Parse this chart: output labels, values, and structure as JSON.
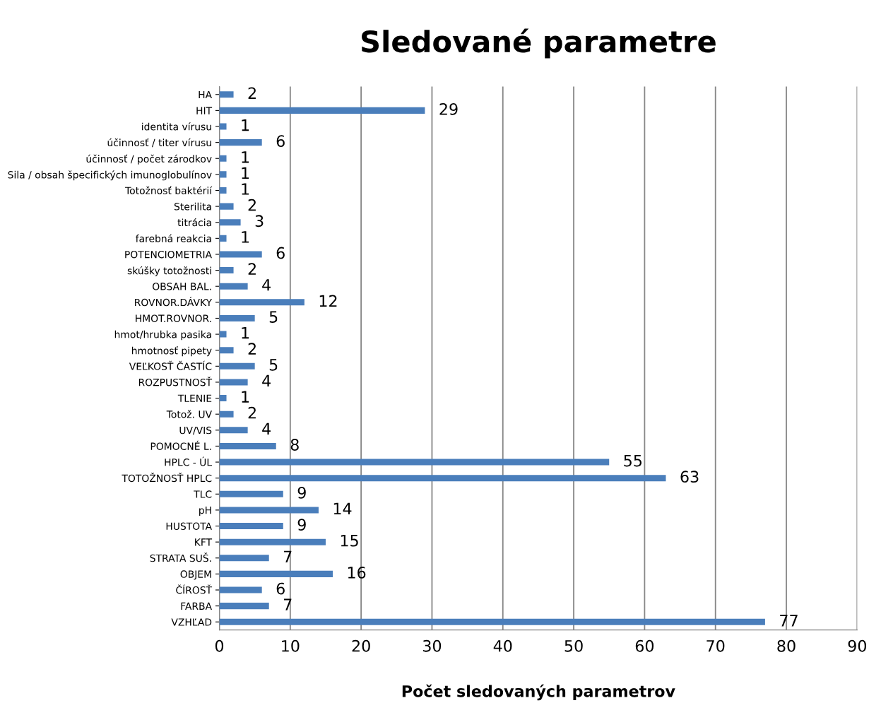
{
  "chart_data": {
    "type": "bar",
    "orientation": "horizontal",
    "title": "Sledované parametre",
    "xlabel": "Počet sledovaných parametrov",
    "categories": [
      "HA",
      "HIT",
      "identita vírusu",
      "účinnosť / titer vírusu",
      "účinnosť / počet zárodkov",
      "Sila / obsah špecifických imunoglobulínov",
      "Totožnosť baktérií",
      "Sterilita",
      "titrácia",
      "farebná reakcia",
      "POTENCIOMETRIA",
      "skúšky totožnosti",
      "OBSAH BAL.",
      "ROVNOR.DÁVKY",
      "HMOT.ROVNOR.",
      "hmot/hrubka pasika",
      "hmotnosť pipety",
      "VEĽKOSŤ ČASTÍC",
      "ROZPUSTNOSŤ",
      "TLENIE",
      "Totož. UV",
      "UV/VIS",
      "POMOCNÉ L.",
      "HPLC - ÚL",
      "TOTOŽNOSŤ HPLC",
      "TLC",
      "pH",
      "HUSTOTA",
      "KFT",
      "STRATA SUŠ.",
      "OBJEM",
      "ČÍROSŤ",
      "FARBA",
      "VZHĽAD"
    ],
    "values": [
      2,
      29,
      1,
      6,
      1,
      1,
      1,
      2,
      3,
      1,
      6,
      2,
      4,
      12,
      5,
      1,
      2,
      5,
      4,
      1,
      2,
      4,
      8,
      55,
      63,
      9,
      14,
      9,
      15,
      7,
      16,
      6,
      7,
      77
    ],
    "color": "#4a7ebb",
    "xlim": [
      0,
      90
    ],
    "xticks": [
      0,
      10,
      20,
      30,
      40,
      50,
      60,
      70,
      80,
      90
    ],
    "grid": "x",
    "data_labels": true,
    "legend": false
  }
}
